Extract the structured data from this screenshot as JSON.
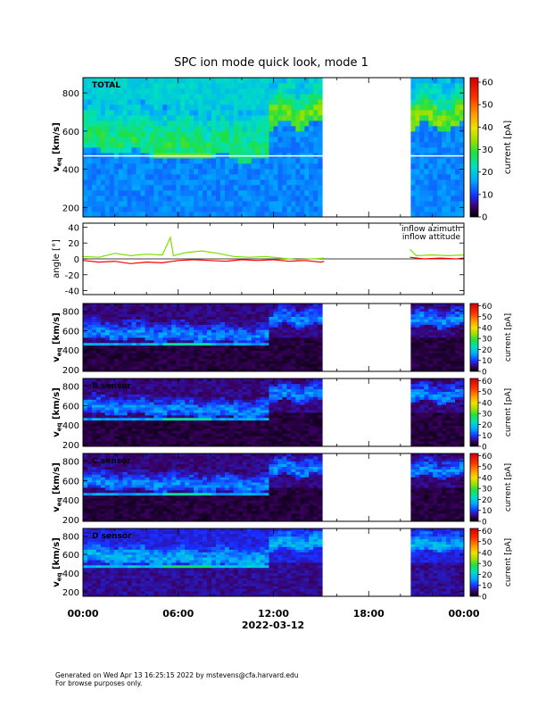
{
  "chart_data": {
    "type": "heatmap",
    "title": "SPC ion mode quick look, mode 1",
    "xlabel": "2022-03-12",
    "x_ticks": [
      "00:00",
      "06:00",
      "12:00",
      "18:00",
      "00:00"
    ],
    "x_range_hours": [
      0,
      24
    ],
    "data_gap_hours": [
      15.2,
      20.6
    ],
    "panels": [
      {
        "kind": "spectrogram",
        "label": "TOTAL",
        "ylabel_main": "v",
        "ylabel_sub": "eq",
        "ylabel_unit": "[km/s]",
        "ylim": [
          150,
          880
        ],
        "yticks": [
          200,
          400,
          600,
          800
        ],
        "colorbar": {
          "label": "current [pA]",
          "range": [
            0,
            62
          ],
          "ticks": [
            0,
            10,
            20,
            30,
            40,
            50,
            60
          ]
        },
        "white_line_v": 470,
        "peak_speed_profile": [
          {
            "t": 0,
            "v": 560
          },
          {
            "t": 2,
            "v": 540
          },
          {
            "t": 4,
            "v": 520
          },
          {
            "t": 6,
            "v": 510
          },
          {
            "t": 8,
            "v": 500
          },
          {
            "t": 10,
            "v": 530
          },
          {
            "t": 11.7,
            "v": 560
          },
          {
            "t": 12,
            "v": 700
          },
          {
            "t": 13.5,
            "v": 690
          },
          {
            "t": 15.2,
            "v": 650
          },
          {
            "t": 20.6,
            "v": 680
          },
          {
            "t": 24,
            "v": 650
          }
        ]
      },
      {
        "kind": "line",
        "ylabel": "angle [°]",
        "ylim": [
          -45,
          45
        ],
        "yticks": [
          -40,
          -20,
          0,
          20,
          40
        ],
        "series": [
          {
            "name": "inflow azimuth",
            "color": "#ff0000",
            "points": [
              {
                "t": 0,
                "v": -2
              },
              {
                "t": 1,
                "v": -4
              },
              {
                "t": 2,
                "v": -3
              },
              {
                "t": 3,
                "v": -6
              },
              {
                "t": 4,
                "v": -4
              },
              {
                "t": 5,
                "v": -5
              },
              {
                "t": 6,
                "v": -2
              },
              {
                "t": 7,
                "v": -1
              },
              {
                "t": 8,
                "v": -2
              },
              {
                "t": 9,
                "v": -3
              },
              {
                "t": 10,
                "v": -1
              },
              {
                "t": 11,
                "v": -2
              },
              {
                "t": 12,
                "v": -1
              },
              {
                "t": 13,
                "v": -3
              },
              {
                "t": 14,
                "v": -2
              },
              {
                "t": 15,
                "v": -4
              },
              {
                "t": 15.2,
                "v": -3
              },
              {
                "t": 20.6,
                "v": 2
              },
              {
                "t": 21.5,
                "v": 0
              },
              {
                "t": 22.5,
                "v": 1
              },
              {
                "t": 23.5,
                "v": 0
              },
              {
                "t": 24,
                "v": 1
              }
            ]
          },
          {
            "name": "inflow attitude",
            "color": "#7fe000",
            "points": [
              {
                "t": 0,
                "v": 3
              },
              {
                "t": 1,
                "v": 2
              },
              {
                "t": 2,
                "v": 7
              },
              {
                "t": 3,
                "v": 4
              },
              {
                "t": 4,
                "v": 6
              },
              {
                "t": 5,
                "v": 5
              },
              {
                "t": 5.5,
                "v": 27
              },
              {
                "t": 5.7,
                "v": 4
              },
              {
                "t": 6.5,
                "v": 8
              },
              {
                "t": 7.5,
                "v": 10
              },
              {
                "t": 8.5,
                "v": 7
              },
              {
                "t": 9.5,
                "v": 3
              },
              {
                "t": 10.5,
                "v": 2
              },
              {
                "t": 11.5,
                "v": 3
              },
              {
                "t": 12.5,
                "v": 1
              },
              {
                "t": 13.5,
                "v": -1
              },
              {
                "t": 14.5,
                "v": 0
              },
              {
                "t": 15.2,
                "v": 1
              },
              {
                "t": 20.6,
                "v": 12
              },
              {
                "t": 21,
                "v": 4
              },
              {
                "t": 22,
                "v": 5
              },
              {
                "t": 23,
                "v": 4
              },
              {
                "t": 24,
                "v": 5
              }
            ]
          }
        ]
      },
      {
        "kind": "spectrogram",
        "label": "",
        "ylabel_main": "v",
        "ylabel_sub": "eq",
        "ylabel_unit": "[km/s]",
        "ylim": [
          180,
          880
        ],
        "yticks": [
          200,
          400,
          600,
          800
        ],
        "colorbar": {
          "label": "current [pA]",
          "range": [
            0,
            62
          ],
          "ticks": [
            0,
            10,
            20,
            30,
            40,
            50,
            60
          ]
        }
      },
      {
        "kind": "spectrogram",
        "label": "B sensor",
        "ylabel_main": "v",
        "ylabel_sub": "eq",
        "ylabel_unit": "[km/s]",
        "ylim": [
          180,
          880
        ],
        "yticks": [
          200,
          400,
          600,
          800
        ],
        "colorbar": {
          "label": "current [pA]",
          "range": [
            0,
            62
          ],
          "ticks": [
            0,
            10,
            20,
            30,
            40,
            50,
            60
          ]
        }
      },
      {
        "kind": "spectrogram",
        "label": "C sensor",
        "ylabel_main": "v",
        "ylabel_sub": "eq",
        "ylabel_unit": "[km/s]",
        "ylim": [
          180,
          880
        ],
        "yticks": [
          200,
          400,
          600,
          800
        ],
        "colorbar": {
          "label": "current [pA]",
          "range": [
            0,
            62
          ],
          "ticks": [
            0,
            10,
            20,
            30,
            40,
            50,
            60
          ]
        }
      },
      {
        "kind": "spectrogram",
        "label": "D sensor",
        "ylabel_main": "v",
        "ylabel_sub": "eq",
        "ylabel_unit": "[km/s]",
        "ylim": [
          150,
          880
        ],
        "yticks": [
          200,
          400,
          600,
          800
        ],
        "colorbar": {
          "label": "current [pA]",
          "range": [
            0,
            62
          ],
          "ticks": [
            0,
            10,
            20,
            30,
            40,
            50,
            60
          ]
        }
      }
    ]
  },
  "footer": {
    "line1": "Generated on Wed Apr 13 16:25:15 2022 by mstevens@cfa.harvard.edu",
    "line2": "For browse purposes only."
  }
}
